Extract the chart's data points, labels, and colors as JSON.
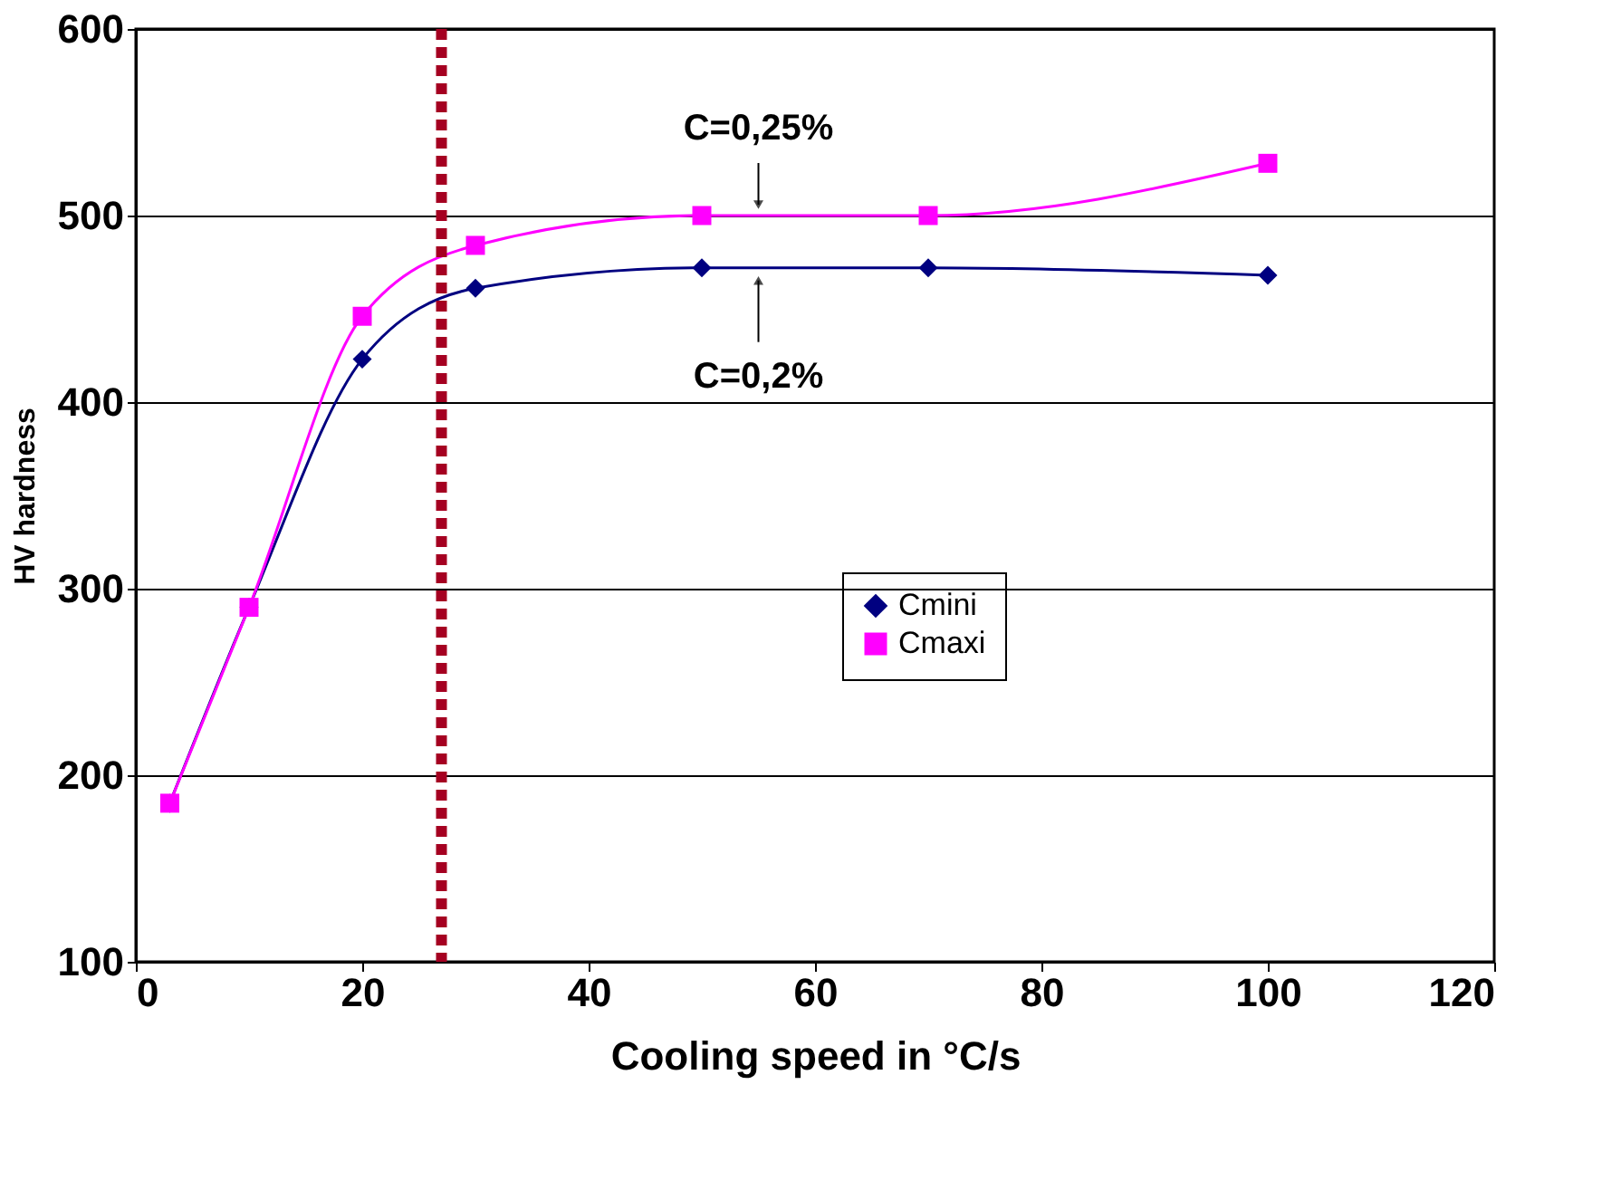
{
  "chart_data": {
    "type": "line",
    "xlabel": "Cooling speed in °C/s",
    "ylabel": "HV hardness",
    "xlim": [
      0,
      120
    ],
    "xticks": [
      0,
      20,
      40,
      60,
      80,
      100,
      120
    ],
    "ylim": [
      100,
      600
    ],
    "yticks": [
      100,
      200,
      300,
      400,
      500,
      600
    ],
    "grid": "y",
    "legend": "right",
    "line_style": "solid",
    "series": [
      {
        "name": "Cmini",
        "color": "#000080",
        "marker": "diamond",
        "x": [
          3,
          10,
          20,
          30,
          50,
          70,
          100
        ],
        "values": [
          185,
          290,
          423,
          461,
          472,
          472,
          468
        ]
      },
      {
        "name": "Cmaxi",
        "color": "#ff00ff",
        "marker": "square",
        "x": [
          3,
          10,
          20,
          30,
          50,
          70,
          100
        ],
        "values": [
          185,
          290,
          446,
          484,
          500,
          500,
          528
        ]
      }
    ],
    "ref_lines": [
      {
        "axis": "x",
        "value": 27,
        "label": null,
        "color": "#a50021",
        "line_style": "dashed"
      }
    ],
    "annotations": [
      {
        "text": "C=0,25%",
        "x": 55,
        "y": 500
      },
      {
        "text": "C=0,2%",
        "x": 55,
        "y": 472
      }
    ]
  }
}
